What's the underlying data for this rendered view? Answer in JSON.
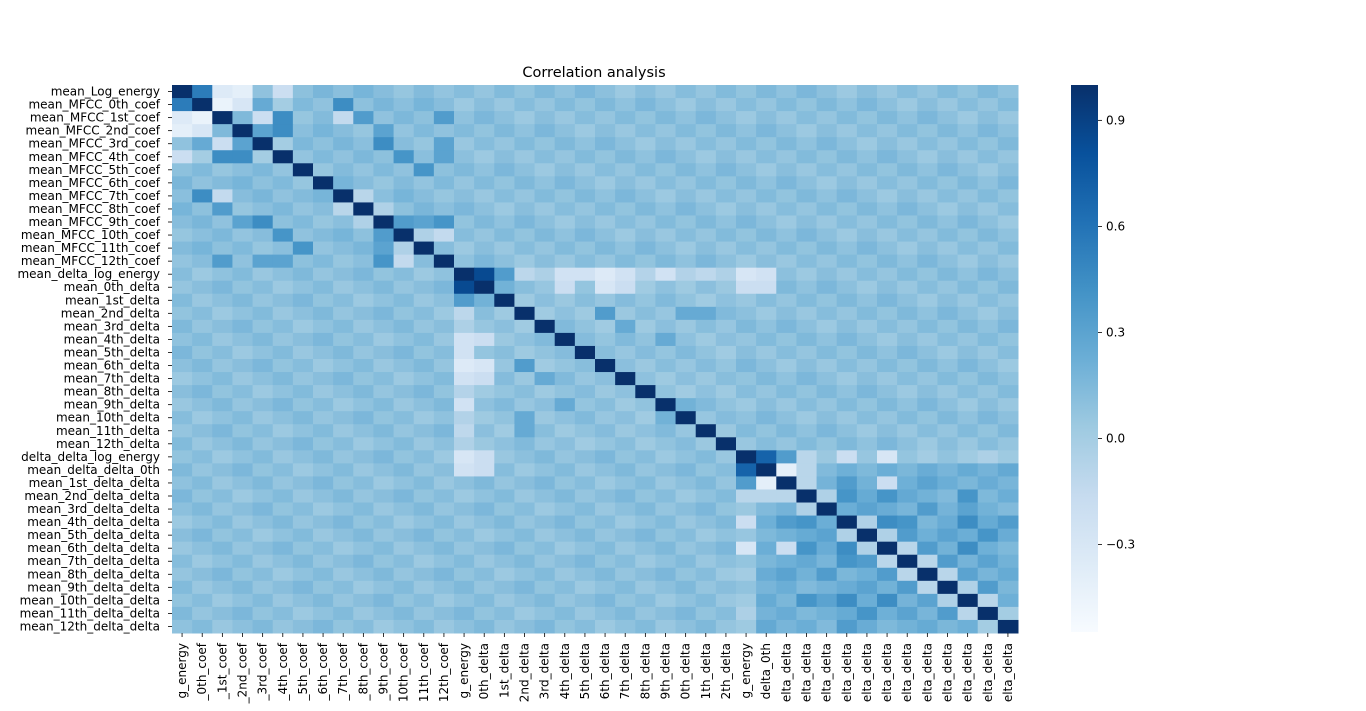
{
  "chart_data": {
    "type": "heatmap",
    "title": "Correlation analysis",
    "colormap": "Blues",
    "colorbar": {
      "range": [
        -0.55,
        1.0
      ],
      "ticks": [
        0.9,
        0.6,
        0.3,
        0.0,
        -0.3
      ],
      "tick_labels": [
        "0.9",
        "0.6",
        "0.3",
        "0.0",
        "−0.3"
      ]
    },
    "row_labels": [
      "mean_Log_energy",
      "mean_MFCC_0th_coef",
      "mean_MFCC_1st_coef",
      "mean_MFCC_2nd_coef",
      "mean_MFCC_3rd_coef",
      "mean_MFCC_4th_coef",
      "mean_MFCC_5th_coef",
      "mean_MFCC_6th_coef",
      "mean_MFCC_7th_coef",
      "mean_MFCC_8th_coef",
      "mean_MFCC_9th_coef",
      "mean_MFCC_10th_coef",
      "mean_MFCC_11th_coef",
      "mean_MFCC_12th_coef",
      "mean_delta_log_energy",
      "mean_0th_delta",
      "mean_1st_delta",
      "mean_2nd_delta",
      "mean_3rd_delta",
      "mean_4th_delta",
      "mean_5th_delta",
      "mean_6th_delta",
      "mean_7th_delta",
      "mean_8th_delta",
      "mean_9th_delta",
      "mean_10th_delta",
      "mean_11th_delta",
      "mean_12th_delta",
      "delta_delta_log_energy",
      "mean_delta_delta_0th",
      "mean_1st_delta_delta",
      "mean_2nd_delta_delta",
      "mean_3rd_delta_delta",
      "mean_4th_delta_delta",
      "mean_5th_delta_delta",
      "mean_6th_delta_delta",
      "mean_7th_delta_delta",
      "mean_8th_delta_delta",
      "mean_9th_delta_delta",
      "mean_10th_delta_delta",
      "mean_11th_delta_delta",
      "mean_12th_delta_delta"
    ],
    "col_labels": [
      "g_energy",
      "_0th_coef",
      "_1st_coef",
      "_2nd_coef",
      "_3rd_coef",
      "_4th_coef",
      "_5th_coef",
      "_6th_coef",
      "_7th_coef",
      "_8th_coef",
      "_9th_coef",
      "10th_coef",
      "11th_coef",
      "12th_coef",
      "g_energy",
      "0th_delta",
      "1st_delta",
      "2nd_delta",
      "3rd_delta",
      "4th_delta",
      "5th_delta",
      "6th_delta",
      "7th_delta",
      "8th_delta",
      "9th_delta",
      "0th_delta",
      "1th_delta",
      "2th_delta",
      "g_energy",
      "delta_0th",
      "elta_delta",
      "elta_delta",
      "elta_delta",
      "elta_delta",
      "elta_delta",
      "elta_delta",
      "elta_delta",
      "elta_delta",
      "elta_delta",
      "elta_delta",
      "elta_delta",
      "elta_delta"
    ],
    "n": 42,
    "diagonal": 1.0,
    "base": 0.1,
    "blocks": [
      {
        "label": "MFCC vs MFCC",
        "rows": [
          0,
          13
        ],
        "cols": [
          0,
          13
        ],
        "value": 0.12
      },
      {
        "label": "delta vs delta",
        "rows": [
          14,
          27
        ],
        "cols": [
          14,
          27
        ],
        "value": 0.08
      },
      {
        "label": "delta_delta vs delta_delta",
        "rows": [
          28,
          41
        ],
        "cols": [
          28,
          41
        ],
        "value": 0.2
      },
      {
        "label": "delta_log_energy row vs delta",
        "rows": [
          14,
          14
        ],
        "cols": [
          17,
          27
        ],
        "value": -0.1
      },
      {
        "label": "delta_delta_log_energy row",
        "rows": [
          28,
          28
        ],
        "cols": [
          29,
          41
        ],
        "value": 0.02
      }
    ],
    "pairs": [
      {
        "row": 0,
        "col": 1,
        "value": 0.55
      },
      {
        "row": 0,
        "col": 2,
        "value": -0.35
      },
      {
        "row": 0,
        "col": 3,
        "value": -0.4
      },
      {
        "row": 0,
        "col": 5,
        "value": -0.2
      },
      {
        "row": 1,
        "col": 2,
        "value": -0.45
      },
      {
        "row": 1,
        "col": 3,
        "value": -0.3
      },
      {
        "row": 1,
        "col": 4,
        "value": 0.25
      },
      {
        "row": 1,
        "col": 5,
        "value": 0.0
      },
      {
        "row": 1,
        "col": 8,
        "value": 0.45
      },
      {
        "row": 2,
        "col": 3,
        "value": 0.15
      },
      {
        "row": 2,
        "col": 4,
        "value": -0.2
      },
      {
        "row": 2,
        "col": 5,
        "value": 0.45
      },
      {
        "row": 2,
        "col": 8,
        "value": -0.15
      },
      {
        "row": 2,
        "col": 9,
        "value": 0.35
      },
      {
        "row": 2,
        "col": 13,
        "value": 0.35
      },
      {
        "row": 3,
        "col": 4,
        "value": 0.3
      },
      {
        "row": 3,
        "col": 5,
        "value": 0.45
      },
      {
        "row": 3,
        "col": 10,
        "value": 0.3
      },
      {
        "row": 4,
        "col": 5,
        "value": 0.0
      },
      {
        "row": 4,
        "col": 10,
        "value": 0.45
      },
      {
        "row": 4,
        "col": 13,
        "value": 0.3
      },
      {
        "row": 5,
        "col": 11,
        "value": 0.4
      },
      {
        "row": 5,
        "col": 13,
        "value": 0.3
      },
      {
        "row": 6,
        "col": 12,
        "value": 0.4
      },
      {
        "row": 8,
        "col": 9,
        "value": -0.1
      },
      {
        "row": 9,
        "col": 10,
        "value": -0.05
      },
      {
        "row": 10,
        "col": 11,
        "value": 0.35
      },
      {
        "row": 10,
        "col": 12,
        "value": 0.3
      },
      {
        "row": 10,
        "col": 13,
        "value": 0.4
      },
      {
        "row": 11,
        "col": 12,
        "value": -0.05
      },
      {
        "row": 11,
        "col": 13,
        "value": -0.15
      },
      {
        "row": 14,
        "col": 15,
        "value": 0.85
      },
      {
        "row": 14,
        "col": 16,
        "value": 0.35
      },
      {
        "row": 14,
        "col": 19,
        "value": -0.25
      },
      {
        "row": 14,
        "col": 20,
        "value": -0.25
      },
      {
        "row": 14,
        "col": 21,
        "value": -0.35
      },
      {
        "row": 14,
        "col": 22,
        "value": -0.25
      },
      {
        "row": 14,
        "col": 24,
        "value": -0.25
      },
      {
        "row": 15,
        "col": 16,
        "value": 0.2
      },
      {
        "row": 15,
        "col": 19,
        "value": -0.2
      },
      {
        "row": 15,
        "col": 21,
        "value": -0.3
      },
      {
        "row": 15,
        "col": 22,
        "value": -0.2
      },
      {
        "row": 14,
        "col": 28,
        "value": -0.3
      },
      {
        "row": 14,
        "col": 29,
        "value": -0.25
      },
      {
        "row": 15,
        "col": 28,
        "value": -0.2
      },
      {
        "row": 15,
        "col": 29,
        "value": -0.2
      },
      {
        "row": 17,
        "col": 21,
        "value": 0.35
      },
      {
        "row": 17,
        "col": 25,
        "value": 0.25
      },
      {
        "row": 17,
        "col": 26,
        "value": 0.25
      },
      {
        "row": 18,
        "col": 22,
        "value": 0.25
      },
      {
        "row": 19,
        "col": 24,
        "value": 0.25
      },
      {
        "row": 24,
        "col": 25,
        "value": 0.2
      },
      {
        "row": 28,
        "col": 29,
        "value": 0.7
      },
      {
        "row": 28,
        "col": 30,
        "value": 0.35
      },
      {
        "row": 28,
        "col": 31,
        "value": -0.1
      },
      {
        "row": 28,
        "col": 33,
        "value": -0.2
      },
      {
        "row": 28,
        "col": 35,
        "value": -0.3
      },
      {
        "row": 29,
        "col": 30,
        "value": -0.4
      },
      {
        "row": 29,
        "col": 31,
        "value": -0.1
      },
      {
        "row": 30,
        "col": 31,
        "value": -0.1
      },
      {
        "row": 30,
        "col": 33,
        "value": 0.35
      },
      {
        "row": 30,
        "col": 35,
        "value": -0.2
      },
      {
        "row": 30,
        "col": 37,
        "value": 0.3
      },
      {
        "row": 31,
        "col": 32,
        "value": -0.05
      },
      {
        "row": 31,
        "col": 33,
        "value": 0.4
      },
      {
        "row": 31,
        "col": 35,
        "value": 0.4
      },
      {
        "row": 31,
        "col": 39,
        "value": 0.4
      },
      {
        "row": 32,
        "col": 34,
        "value": 0.3
      },
      {
        "row": 32,
        "col": 37,
        "value": 0.35
      },
      {
        "row": 32,
        "col": 39,
        "value": 0.3
      },
      {
        "row": 33,
        "col": 34,
        "value": -0.05
      },
      {
        "row": 33,
        "col": 35,
        "value": 0.45
      },
      {
        "row": 33,
        "col": 36,
        "value": 0.4
      },
      {
        "row": 33,
        "col": 39,
        "value": 0.45
      },
      {
        "row": 33,
        "col": 41,
        "value": 0.35
      },
      {
        "row": 34,
        "col": 35,
        "value": -0.05
      },
      {
        "row": 34,
        "col": 36,
        "value": 0.35
      },
      {
        "row": 34,
        "col": 38,
        "value": 0.3
      },
      {
        "row": 34,
        "col": 40,
        "value": 0.4
      },
      {
        "row": 35,
        "col": 36,
        "value": -0.1
      },
      {
        "row": 35,
        "col": 37,
        "value": 0.35
      },
      {
        "row": 35,
        "col": 39,
        "value": 0.45
      },
      {
        "row": 36,
        "col": 37,
        "value": -0.1
      },
      {
        "row": 36,
        "col": 38,
        "value": 0.35
      },
      {
        "row": 36,
        "col": 40,
        "value": 0.3
      },
      {
        "row": 37,
        "col": 38,
        "value": -0.1
      },
      {
        "row": 37,
        "col": 39,
        "value": 0.3
      },
      {
        "row": 38,
        "col": 39,
        "value": -0.05
      },
      {
        "row": 38,
        "col": 40,
        "value": 0.35
      },
      {
        "row": 39,
        "col": 40,
        "value": -0.1
      },
      {
        "row": 40,
        "col": 41,
        "value": 0.0
      }
    ]
  }
}
